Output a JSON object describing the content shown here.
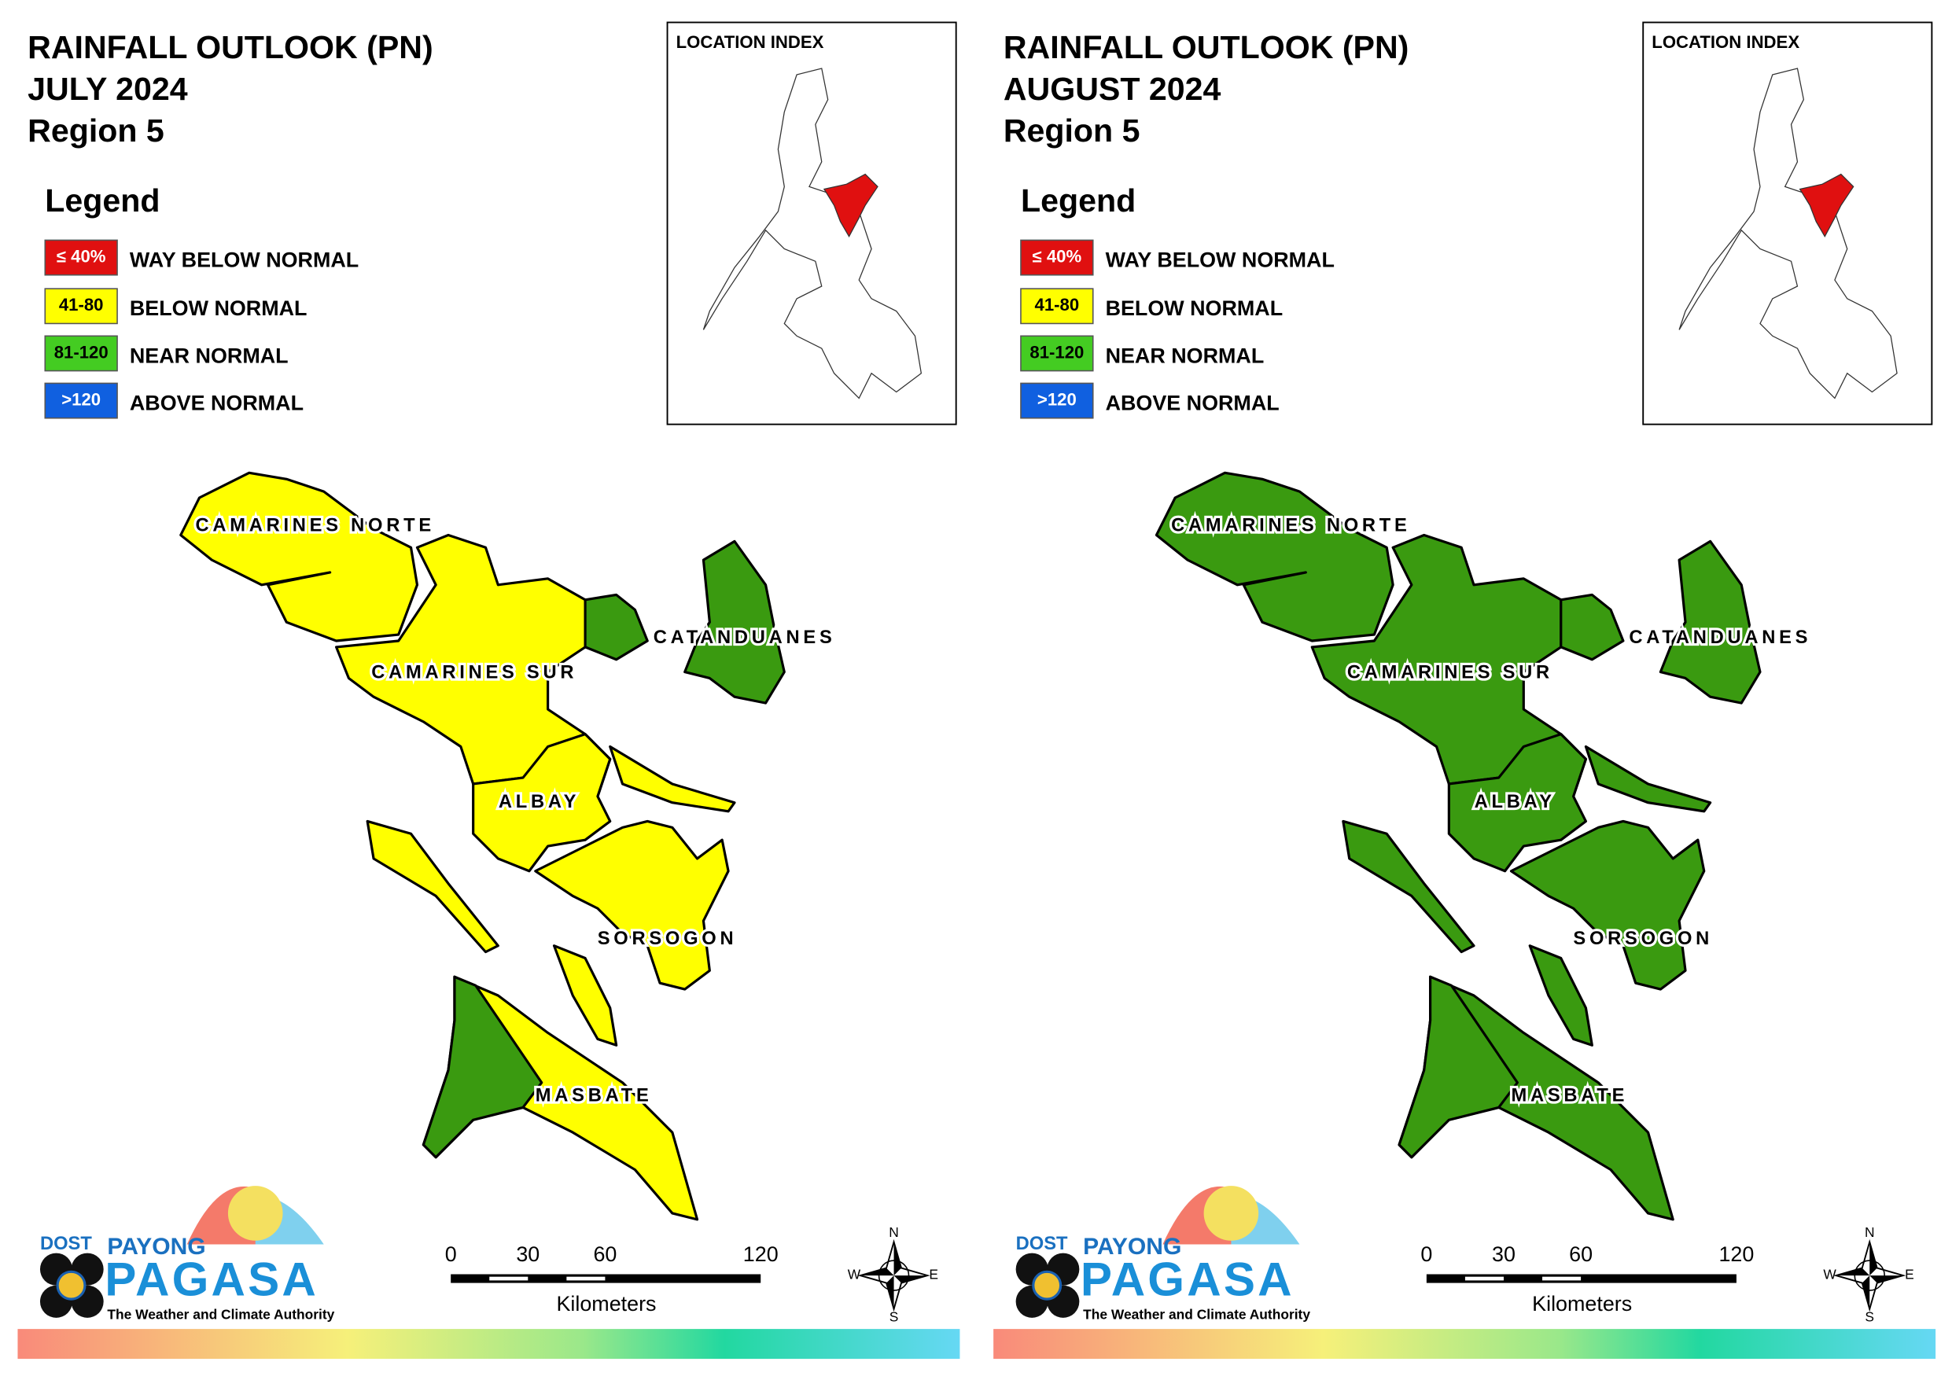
{
  "location_index_title": "LOCATION INDEX",
  "logo": {
    "top": "DOST",
    "brand": "PAYONG",
    "name": "PAGASA",
    "tagline": "The Weather and Climate Authority"
  },
  "scale": {
    "ticks": [
      "0",
      "30",
      "60",
      "120"
    ],
    "unit": "Kilometers"
  },
  "compass": {
    "n": "N",
    "e": "E",
    "s": "S",
    "w": "W"
  },
  "legend": {
    "title": "Legend",
    "items": [
      {
        "range": "≤ 40%",
        "label": "WAY BELOW NORMAL",
        "color": "#e01010",
        "text_color": "#ffffff"
      },
      {
        "range": "41-80",
        "label": "BELOW NORMAL",
        "color": "#ffff00",
        "text_color": "#000000"
      },
      {
        "range": "81-120",
        "label": "NEAR NORMAL",
        "color": "#44cc22",
        "text_color": "#000000"
      },
      {
        "range": ">120",
        "label": "ABOVE NORMAL",
        "color": "#1060e0",
        "text_color": "#ffffff"
      }
    ]
  },
  "panels": [
    {
      "title": [
        "RAINFALL OUTLOOK (PN)",
        "JULY 2024",
        "Region 5"
      ],
      "provinces": [
        {
          "name": "CAMARINES NORTE",
          "colors": [
            "#ffff00"
          ]
        },
        {
          "name": "CAMARINES SUR",
          "colors": [
            "#ffff00",
            "#3a9a10"
          ]
        },
        {
          "name": "CATANDUANES",
          "colors": [
            "#3a9a10"
          ]
        },
        {
          "name": "ALBAY",
          "colors": [
            "#ffff00"
          ]
        },
        {
          "name": "SORSOGON",
          "colors": [
            "#ffff00"
          ]
        },
        {
          "name": "MASBATE",
          "colors": [
            "#ffff00",
            "#3a9a10"
          ]
        }
      ]
    },
    {
      "title": [
        "RAINFALL OUTLOOK (PN)",
        "AUGUST 2024",
        "Region 5"
      ],
      "provinces": [
        {
          "name": "CAMARINES NORTE",
          "colors": [
            "#3a9a10"
          ]
        },
        {
          "name": "CAMARINES SUR",
          "colors": [
            "#3a9a10",
            "#3a9a10"
          ]
        },
        {
          "name": "CATANDUANES",
          "colors": [
            "#3a9a10"
          ]
        },
        {
          "name": "ALBAY",
          "colors": [
            "#3a9a10"
          ]
        },
        {
          "name": "SORSOGON",
          "colors": [
            "#3a9a10"
          ]
        },
        {
          "name": "MASBATE",
          "colors": [
            "#3a9a10",
            "#3a9a10"
          ]
        }
      ]
    }
  ]
}
